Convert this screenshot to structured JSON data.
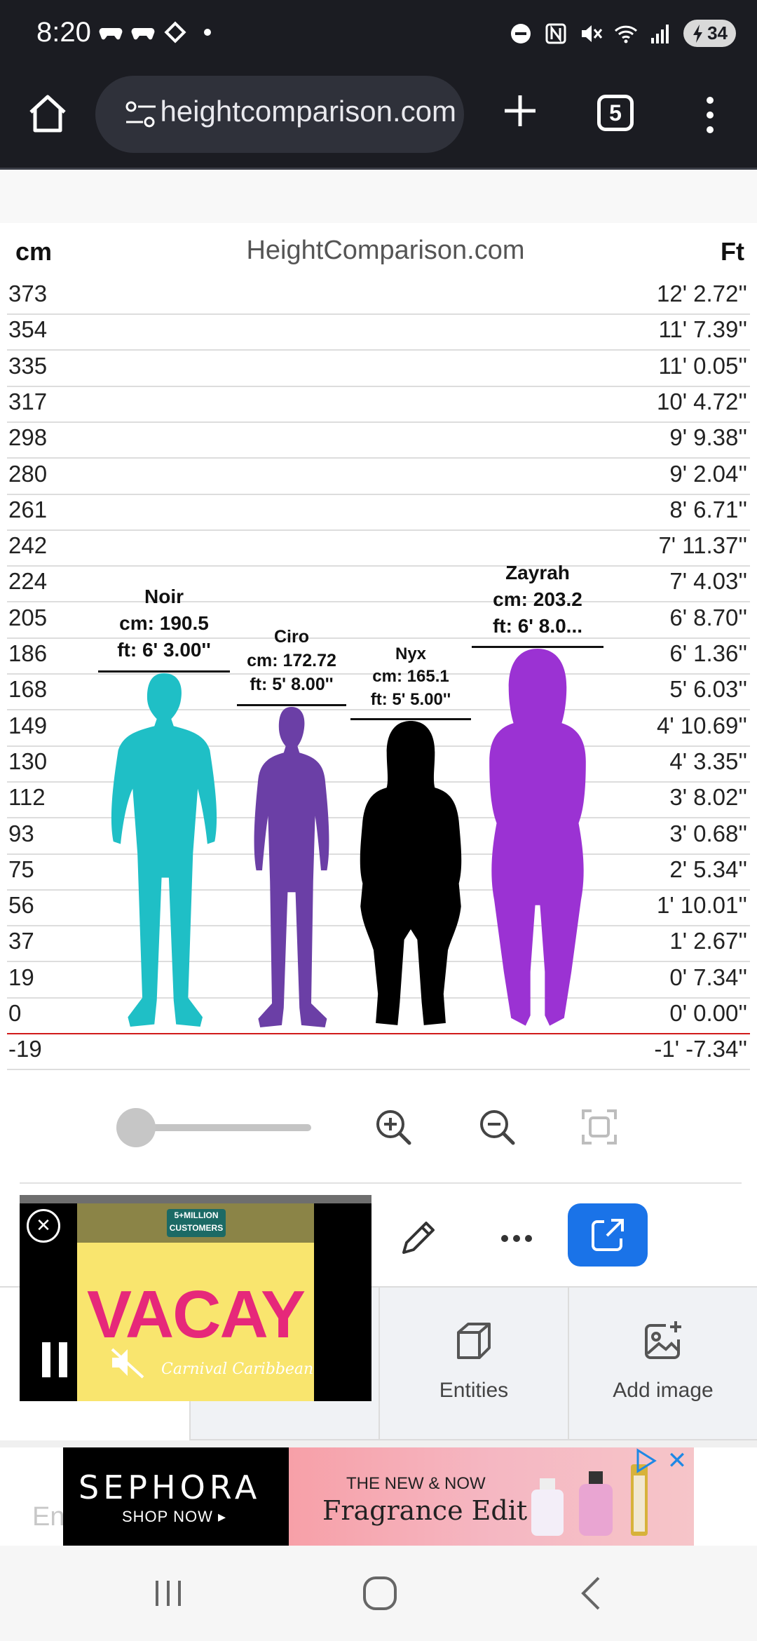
{
  "status_bar": {
    "time": "8:20",
    "battery": "34"
  },
  "browser": {
    "url": "heightcomparison.com",
    "tab_count": "5"
  },
  "chart_data": {
    "type": "table",
    "site_title": "HeightComparison.com",
    "unit_left": "cm",
    "unit_right": "Ft",
    "rows": [
      {
        "cm": "373",
        "ft": "12' 2.72''"
      },
      {
        "cm": "354",
        "ft": "11' 7.39''"
      },
      {
        "cm": "335",
        "ft": "11' 0.05''"
      },
      {
        "cm": "317",
        "ft": "10' 4.72''"
      },
      {
        "cm": "298",
        "ft": "9' 9.38''"
      },
      {
        "cm": "280",
        "ft": "9' 2.04''"
      },
      {
        "cm": "261",
        "ft": "8' 6.71''"
      },
      {
        "cm": "242",
        "ft": "7' 11.37''"
      },
      {
        "cm": "224",
        "ft": "7' 4.03''"
      },
      {
        "cm": "205",
        "ft": "6' 8.70''"
      },
      {
        "cm": "186",
        "ft": "6' 1.36''"
      },
      {
        "cm": "168",
        "ft": "5' 6.03''"
      },
      {
        "cm": "149",
        "ft": "4' 10.69''"
      },
      {
        "cm": "130",
        "ft": "4' 3.35''"
      },
      {
        "cm": "112",
        "ft": "3' 8.02''"
      },
      {
        "cm": "93",
        "ft": "3' 0.68''"
      },
      {
        "cm": "75",
        "ft": "2' 5.34''"
      },
      {
        "cm": "56",
        "ft": "1' 10.01''"
      },
      {
        "cm": "37",
        "ft": "1' 2.67''"
      },
      {
        "cm": "19",
        "ft": "0' 7.34''"
      },
      {
        "cm": "0",
        "ft": "0' 0.00''"
      },
      {
        "cm": "-19",
        "ft": "-1' -7.34''"
      }
    ],
    "people": [
      {
        "name": "Noir",
        "cm_text": "cm: 190.5",
        "ft_text": "ft: 6' 3.00''",
        "height_cm": 190.5,
        "color": "#1fbfc6"
      },
      {
        "name": "Ciro",
        "cm_text": "cm: 172.72",
        "ft_text": "ft: 5' 8.00''",
        "height_cm": 172.72,
        "color": "#6b3fa6"
      },
      {
        "name": "Nyx",
        "cm_text": "cm: 165.1",
        "ft_text": "ft: 5' 5.00''",
        "height_cm": 165.1,
        "color": "#000000"
      },
      {
        "name": "Zayrah",
        "cm_text": "cm: 203.2",
        "ft_text": "ft: 6' 8.0...",
        "height_cm": 203.2,
        "color": "#9b32d3"
      }
    ]
  },
  "tabs": [
    {
      "label": "",
      "icon": "cube-icon"
    },
    {
      "label": "",
      "icon": "none"
    },
    {
      "label": "Entities",
      "icon": "cube-icon"
    },
    {
      "label": "Add image",
      "icon": "image-plus-icon"
    }
  ],
  "video_ad": {
    "badge": "5+MILLION CUSTOMERS",
    "headline": "VACAY",
    "brand": "Carnival Caribbean"
  },
  "banner_ad": {
    "brand": "SEPHORA",
    "cta": "SHOP NOW ▸",
    "line1": "THE NEW & NOW",
    "line2": "Fragrance Edit",
    "ghost_text": "En"
  },
  "colors": {
    "accent": "#1a73e8",
    "zero_line": "#d11a1a"
  }
}
